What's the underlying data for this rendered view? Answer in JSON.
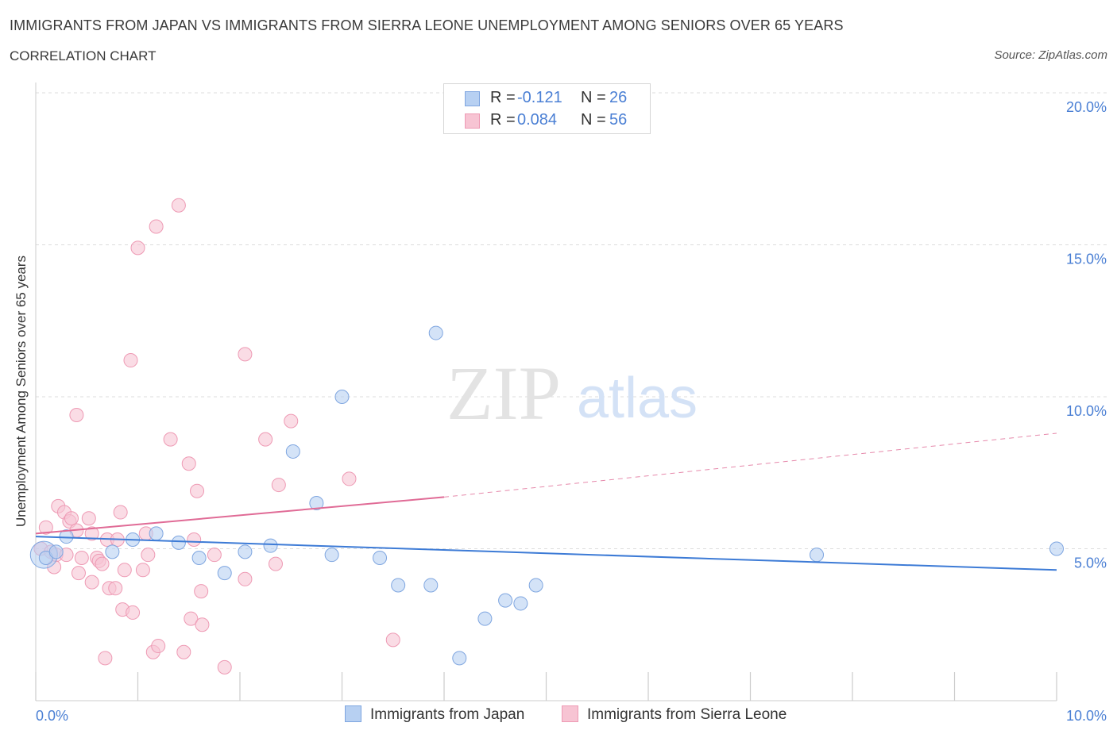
{
  "header": {
    "title": "IMMIGRANTS FROM JAPAN VS IMMIGRANTS FROM SIERRA LEONE UNEMPLOYMENT AMONG SENIORS OVER 65 YEARS",
    "subtitle": "CORRELATION CHART",
    "source": "Source: ZipAtlas.com"
  },
  "watermark": {
    "zip": "ZIP",
    "atlas": "atlas"
  },
  "colors": {
    "japan_fill": "#b7d0f2",
    "japan_stroke": "#7fa6e0",
    "japan_line": "#3d7bd6",
    "sierra_fill": "#f7c4d3",
    "sierra_stroke": "#ee9ab4",
    "sierra_line": "#e06b96",
    "tick_label": "#4a7fd4",
    "grid": "#dcdcdc"
  },
  "legend": {
    "rows": [
      {
        "r_label": "R =",
        "r_value": "-0.121",
        "n_label": "N =",
        "n_value": "26"
      },
      {
        "r_label": "R =",
        "r_value": "0.084",
        "n_label": "N =",
        "n_value": "56"
      }
    ]
  },
  "chart_data": {
    "type": "scatter",
    "title": "IMMIGRANTS FROM JAPAN VS IMMIGRANTS FROM SIERRA LEONE UNEMPLOYMENT AMONG SENIORS OVER 65 YEARS",
    "subtitle": "CORRELATION CHART",
    "xlabel": "",
    "ylabel": "Unemployment Among Seniors over 65 years",
    "xlim": [
      0,
      10
    ],
    "ylim": [
      0,
      20
    ],
    "x_tick_labels": [
      "0.0%",
      "10.0%"
    ],
    "y_ticks": [
      5,
      10,
      15,
      20
    ],
    "y_tick_labels": [
      "5.0%",
      "10.0%",
      "15.0%",
      "20.0%"
    ],
    "grid": true,
    "legend_position": "top-center",
    "series": [
      {
        "name": "Immigrants from Japan",
        "r": -0.121,
        "n": 26,
        "trend": {
          "x0": 0.0,
          "y0": 5.4,
          "x1": 10.0,
          "y1": 4.3
        },
        "points": [
          [
            0.1,
            4.7
          ],
          [
            0.2,
            4.9
          ],
          [
            0.3,
            5.4
          ],
          [
            0.75,
            4.9
          ],
          [
            0.95,
            5.3
          ],
          [
            1.18,
            5.5
          ],
          [
            1.4,
            5.2
          ],
          [
            1.6,
            4.7
          ],
          [
            1.85,
            4.2
          ],
          [
            2.05,
            4.9
          ],
          [
            2.3,
            5.1
          ],
          [
            2.52,
            8.2
          ],
          [
            2.75,
            6.5
          ],
          [
            3.0,
            10.0
          ],
          [
            2.9,
            4.8
          ],
          [
            3.37,
            4.7
          ],
          [
            3.55,
            3.8
          ],
          [
            3.92,
            12.1
          ],
          [
            3.87,
            3.8
          ],
          [
            4.15,
            1.4
          ],
          [
            4.4,
            2.7
          ],
          [
            4.6,
            3.3
          ],
          [
            4.75,
            3.2
          ],
          [
            4.9,
            3.8
          ],
          [
            7.65,
            4.8
          ],
          [
            10.0,
            5.0
          ]
        ]
      },
      {
        "name": "Immigrants from Sierra Leone",
        "r": 0.084,
        "n": 56,
        "trend": {
          "x0": 0.0,
          "y0": 5.5,
          "x1": 4.0,
          "y1": 6.7
        },
        "trend_dashed": {
          "x0": 4.0,
          "y0": 6.7,
          "x1": 10.0,
          "y1": 8.8
        },
        "points": [
          [
            0.05,
            5.0
          ],
          [
            0.1,
            5.7
          ],
          [
            0.15,
            4.9
          ],
          [
            0.18,
            4.4
          ],
          [
            0.2,
            4.8
          ],
          [
            0.22,
            6.4
          ],
          [
            0.28,
            6.2
          ],
          [
            0.3,
            4.8
          ],
          [
            0.33,
            5.9
          ],
          [
            0.35,
            6.0
          ],
          [
            0.4,
            5.6
          ],
          [
            0.4,
            9.4
          ],
          [
            0.42,
            4.2
          ],
          [
            0.45,
            4.7
          ],
          [
            0.52,
            6.0
          ],
          [
            0.55,
            5.5
          ],
          [
            0.55,
            3.9
          ],
          [
            0.6,
            4.7
          ],
          [
            0.62,
            4.6
          ],
          [
            0.65,
            4.5
          ],
          [
            0.68,
            1.4
          ],
          [
            0.7,
            5.3
          ],
          [
            0.72,
            3.7
          ],
          [
            0.78,
            3.7
          ],
          [
            0.8,
            5.3
          ],
          [
            0.83,
            6.2
          ],
          [
            0.85,
            3.0
          ],
          [
            0.87,
            4.3
          ],
          [
            0.93,
            11.2
          ],
          [
            0.95,
            2.9
          ],
          [
            1.0,
            14.9
          ],
          [
            1.05,
            4.3
          ],
          [
            1.08,
            5.5
          ],
          [
            1.1,
            4.8
          ],
          [
            1.15,
            1.6
          ],
          [
            1.18,
            15.6
          ],
          [
            1.2,
            1.8
          ],
          [
            1.32,
            8.6
          ],
          [
            1.4,
            16.3
          ],
          [
            1.45,
            1.6
          ],
          [
            1.5,
            7.8
          ],
          [
            1.52,
            2.7
          ],
          [
            1.55,
            5.3
          ],
          [
            1.58,
            6.9
          ],
          [
            1.63,
            2.5
          ],
          [
            1.75,
            4.8
          ],
          [
            1.85,
            1.1
          ],
          [
            2.05,
            11.4
          ],
          [
            2.05,
            4.0
          ],
          [
            2.25,
            8.6
          ],
          [
            2.35,
            4.5
          ],
          [
            2.38,
            7.1
          ],
          [
            2.5,
            9.2
          ],
          [
            3.07,
            7.3
          ],
          [
            3.5,
            2.0
          ],
          [
            1.62,
            3.6
          ]
        ]
      }
    ]
  }
}
